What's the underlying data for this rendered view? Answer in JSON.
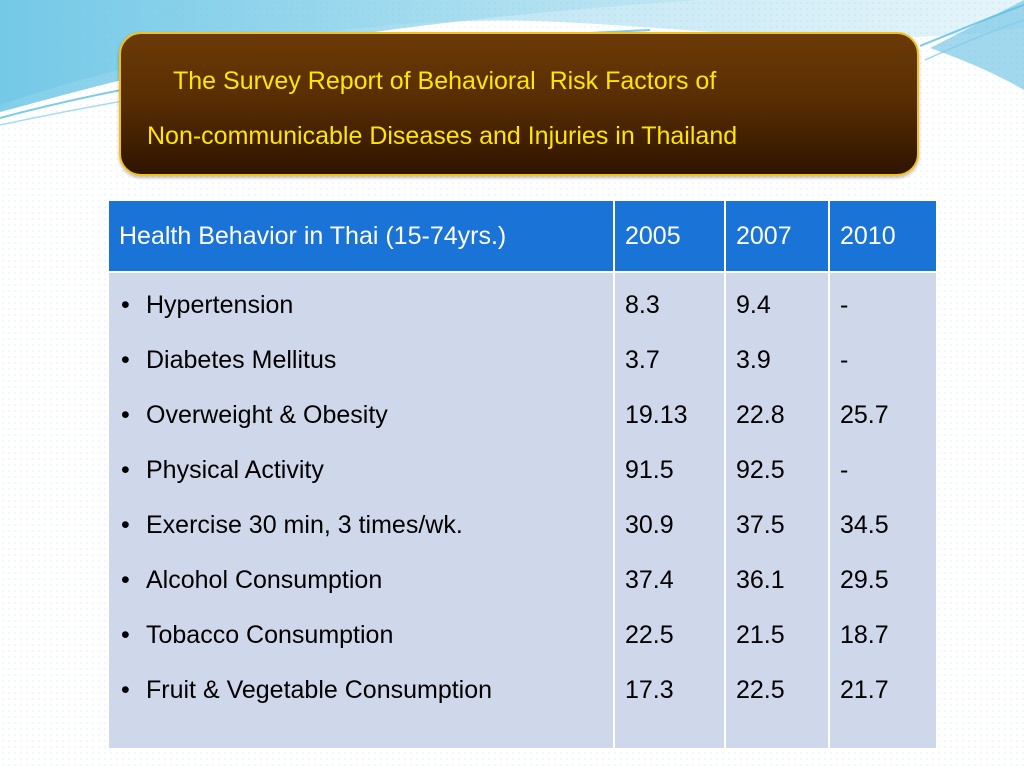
{
  "title": {
    "line1": "The Survey Report of Behavioral  Risk Factors of",
    "line2": "Non-communicable Diseases and Injuries in Thailand"
  },
  "table": {
    "headers": [
      "Health Behavior in Thai (15-74yrs.)",
      "2005",
      "2007",
      "2010"
    ],
    "rows": [
      {
        "behavior": "Hypertension",
        "v2005": "8.3",
        "v2007": "9.4",
        "v2010": "-"
      },
      {
        "behavior": "Diabetes Mellitus",
        "v2005": "3.7",
        "v2007": "3.9",
        "v2010": "-"
      },
      {
        "behavior": "Overweight & Obesity",
        "v2005": "19.13",
        "v2007": "22.8",
        "v2010": "25.7"
      },
      {
        "behavior": "Physical Activity",
        "v2005": "91.5",
        "v2007": "92.5",
        "v2010": "-"
      },
      {
        "behavior": "Exercise 30 min, 3 times/wk.",
        "v2005": "30.9",
        "v2007": "37.5",
        "v2010": "34.5"
      },
      {
        "behavior": "Alcohol Consumption",
        "v2005": "37.4",
        "v2007": "36.1",
        "v2010": "29.5"
      },
      {
        "behavior": "Tobacco Consumption",
        "v2005": "22.5",
        "v2007": "21.5",
        "v2010": "18.7"
      },
      {
        "behavior": "Fruit & Vegetable Consumption",
        "v2005": "17.3",
        "v2007": "22.5",
        "v2010": "21.7"
      }
    ]
  },
  "colors": {
    "title_text": "#ffe600",
    "title_border": "#f2c21a",
    "title_bg": "#5a2e03",
    "header_bg": "#1a73d6",
    "body_bg": "#cfd7ea",
    "wave": "#4fb6dc"
  }
}
